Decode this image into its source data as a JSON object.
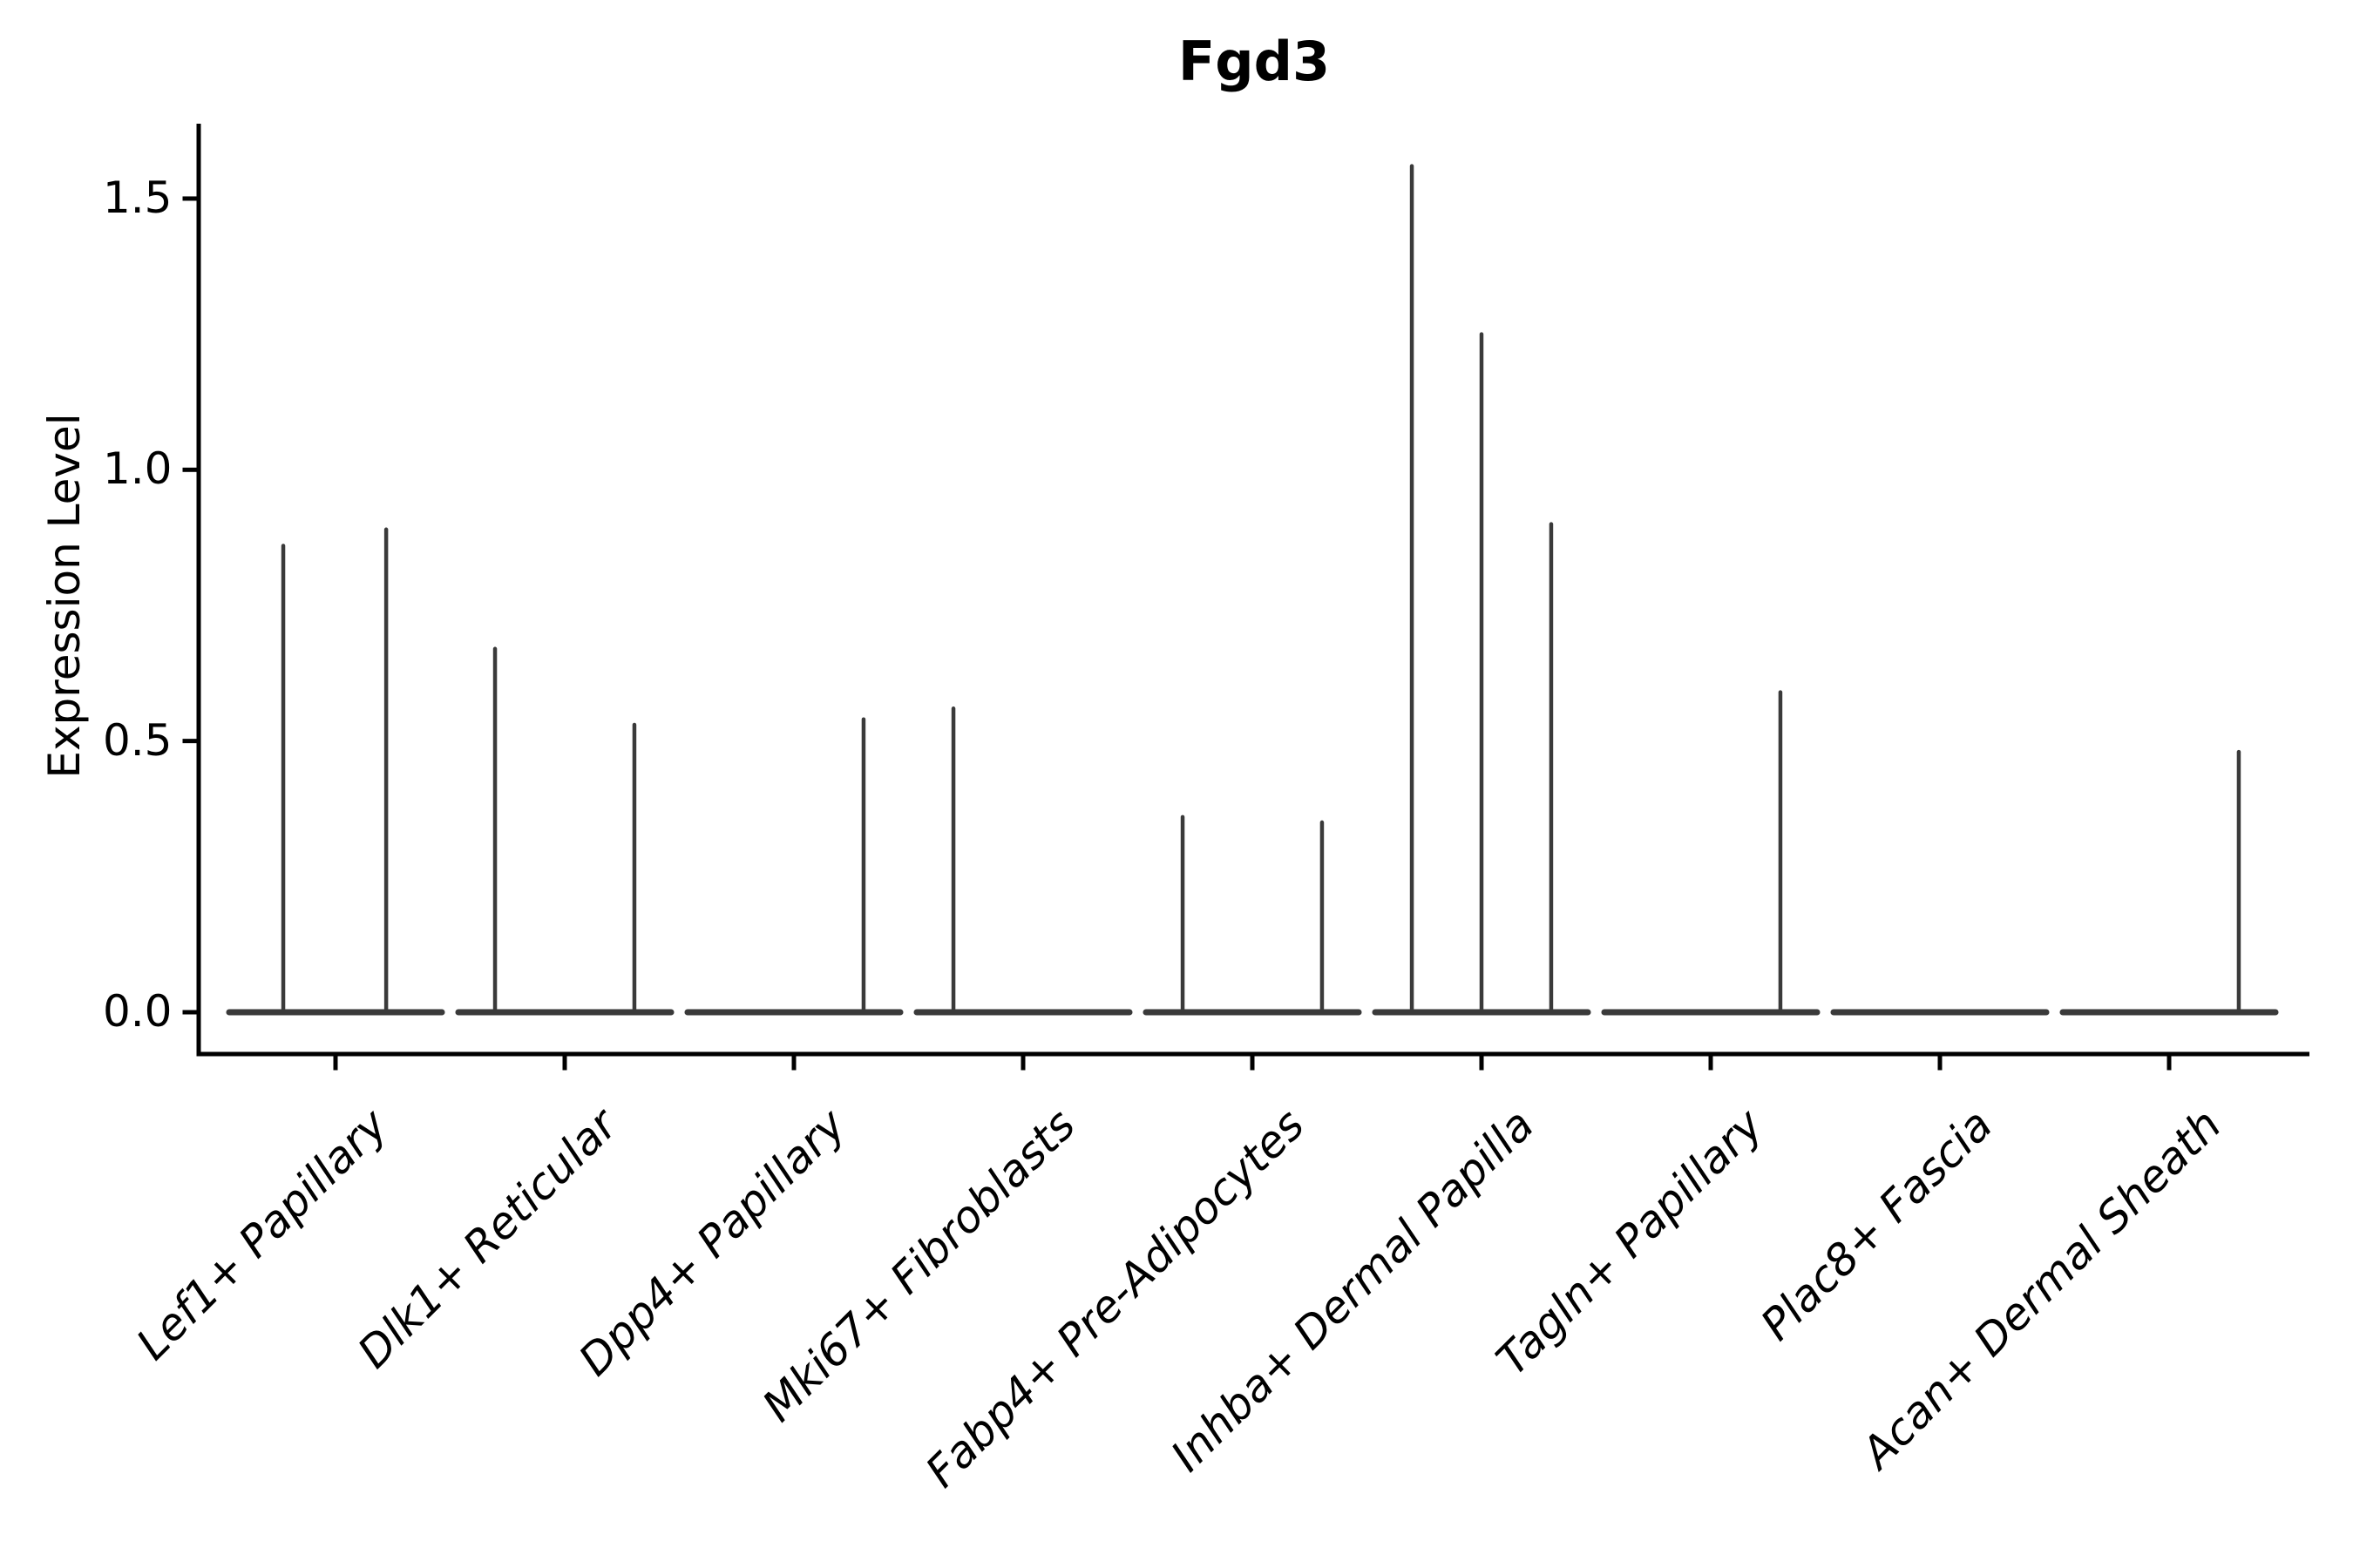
{
  "chart_data": {
    "type": "violin",
    "title": "Fgd3",
    "xlabel": "",
    "ylabel": "Expression Level",
    "yticks": [
      0.0,
      0.5,
      1.0,
      1.5
    ],
    "ytick_labels": [
      "0.0",
      "0.5",
      "1.0",
      "1.5"
    ],
    "ylim": [
      -0.08,
      1.64
    ],
    "grid": false,
    "legend": null,
    "background_color": "#ffffff",
    "violin_color": "#3a3a3a",
    "axis_color": "#000000",
    "x_label_style": "italic, rotated 45deg",
    "categories": [
      "Lef1+ Papillary",
      "Dlk1+ Reticular",
      "Dpp4+ Papillary",
      "Mki67+ Fibroblasts",
      "Fabp4+ Pre-Adipocytes",
      "Inhba+ Dermal Papilla",
      "Tagln+ Papillary",
      "Plac8+ Fascia",
      "Acan+ Dermal Sheath"
    ],
    "groups": [
      {
        "category": "Lef1+ Papillary",
        "violins": [
          {
            "pos_frac": -0.228,
            "max": 0.86
          },
          {
            "pos_frac": 0.221,
            "max": 0.89
          }
        ]
      },
      {
        "category": "Dlk1+ Reticular",
        "violins": [
          {
            "pos_frac": -0.304,
            "max": 0.67
          },
          {
            "pos_frac": 0.304,
            "max": 0.53
          }
        ]
      },
      {
        "category": "Dpp4+ Papillary",
        "violins": [
          {
            "pos_frac": 0.304,
            "max": 0.54
          }
        ]
      },
      {
        "category": "Mki67+ Fibroblasts",
        "violins": [
          {
            "pos_frac": -0.304,
            "max": 0.56
          }
        ]
      },
      {
        "category": "Fabp4+ Pre-Adipocytes",
        "violins": [
          {
            "pos_frac": -0.304,
            "max": 0.36
          },
          {
            "pos_frac": 0.304,
            "max": 0.35
          }
        ]
      },
      {
        "category": "Inhba+ Dermal Papilla",
        "violins": [
          {
            "pos_frac": -0.304,
            "max": 1.56
          },
          {
            "pos_frac": 0.0,
            "max": 1.25
          },
          {
            "pos_frac": 0.304,
            "max": 0.9
          }
        ]
      },
      {
        "category": "Tagln+ Papillary",
        "violins": [
          {
            "pos_frac": 0.304,
            "max": 0.59
          }
        ]
      },
      {
        "category": "Plac8+ Fascia",
        "violins": []
      },
      {
        "category": "Acan+ Dermal Sheath",
        "violins": [
          {
            "pos_frac": 0.304,
            "max": 0.48
          }
        ]
      }
    ],
    "baseline_half_width_frac": 0.464
  }
}
